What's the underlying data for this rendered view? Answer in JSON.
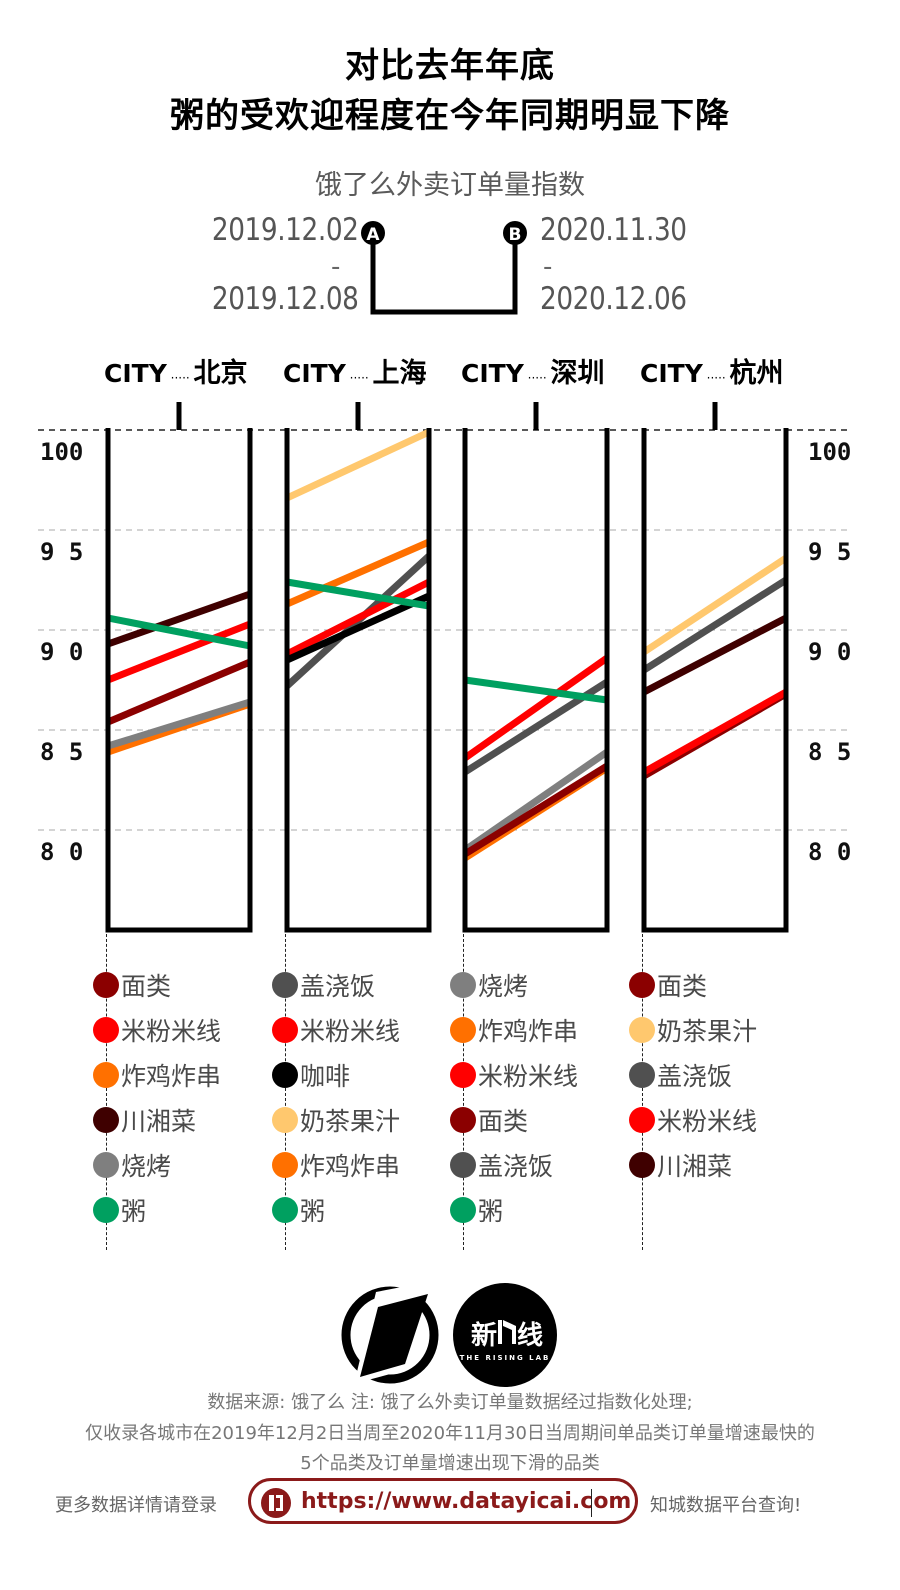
{
  "header": {
    "title_line1": "对比去年年底",
    "title_line2": "粥的受欢迎程度在今年同期明显下降",
    "subtitle": "饿了么外卖订单量指数"
  },
  "periods": {
    "a": {
      "marker": "A",
      "start": "2019.12.02",
      "sep": "-",
      "end": "2019.12.08"
    },
    "b": {
      "marker": "B",
      "start": "2020.11.30",
      "sep": "-",
      "end": "2020.12.06"
    }
  },
  "chart_data": {
    "type": "line",
    "title": "饿了么外卖订单量指数",
    "description": "Slope chart per city: left end = period A (2019.12.02-2019.12.08), right end = period B (2020.11.30-2020.12.06)",
    "x": [
      "A",
      "B"
    ],
    "ylim": [
      75,
      100
    ],
    "yticks": [
      100,
      95,
      90,
      85,
      80
    ],
    "ytick_labels": [
      "100",
      "9 5",
      "9 0",
      "8 5",
      "8 0"
    ],
    "grid": true,
    "panels": [
      {
        "city_prefix": "CITY",
        "city": "北京",
        "series": [
          {
            "name": "面类",
            "color": "#8b0000",
            "values": [
              85.4,
              88.4
            ]
          },
          {
            "name": "米粉米线",
            "color": "#ff0000",
            "values": [
              87.5,
              90.3
            ]
          },
          {
            "name": "炸鸡炸串",
            "color": "#ff7000",
            "values": [
              83.9,
              86.3
            ]
          },
          {
            "name": "川湘菜",
            "color": "#3f0000",
            "values": [
              89.3,
              91.8
            ]
          },
          {
            "name": "烧烤",
            "color": "#7f7f7f",
            "values": [
              84.2,
              86.4
            ]
          },
          {
            "name": "粥",
            "color": "#00a060",
            "values": [
              90.6,
              89.2
            ]
          }
        ]
      },
      {
        "city_prefix": "CITY",
        "city": "上海",
        "series": [
          {
            "name": "盖浇饭",
            "color": "#505050",
            "values": [
              87.2,
              93.7
            ]
          },
          {
            "name": "米粉米线",
            "color": "#ff0000",
            "values": [
              88.8,
              92.4
            ]
          },
          {
            "name": "咖啡",
            "color": "#000000",
            "values": [
              88.5,
              91.7
            ]
          },
          {
            "name": "奶茶果汁",
            "color": "#ffc86e",
            "values": [
              96.6,
              99.9
            ]
          },
          {
            "name": "炸鸡炸串",
            "color": "#ff7000",
            "values": [
              91.3,
              94.4
            ]
          },
          {
            "name": "粥",
            "color": "#00a060",
            "values": [
              92.4,
              91.2
            ]
          }
        ]
      },
      {
        "city_prefix": "CITY",
        "city": "深圳",
        "series": [
          {
            "name": "烧烤",
            "color": "#7f7f7f",
            "values": [
              79.0,
              83.9
            ]
          },
          {
            "name": "炸鸡炸串",
            "color": "#ff7000",
            "values": [
              78.6,
              83.1
            ]
          },
          {
            "name": "米粉米线",
            "color": "#ff0000",
            "values": [
              83.6,
              88.6
            ]
          },
          {
            "name": "面类",
            "color": "#8b0000",
            "values": [
              78.8,
              83.2
            ]
          },
          {
            "name": "盖浇饭",
            "color": "#505050",
            "values": [
              82.9,
              87.4
            ]
          },
          {
            "name": "粥",
            "color": "#00a060",
            "values": [
              87.5,
              86.5
            ]
          }
        ]
      },
      {
        "city_prefix": "CITY",
        "city": "杭州",
        "series": [
          {
            "name": "面类",
            "color": "#8b0000",
            "values": [
              82.7,
              86.8
            ]
          },
          {
            "name": "奶茶果汁",
            "color": "#ffc86e",
            "values": [
              88.9,
              93.6
            ]
          },
          {
            "name": "盖浇饭",
            "color": "#505050",
            "values": [
              88.0,
              92.5
            ]
          },
          {
            "name": "米粉米线",
            "color": "#ff0000",
            "values": [
              82.9,
              86.9
            ]
          },
          {
            "name": "川湘菜",
            "color": "#3f0000",
            "values": [
              86.9,
              90.6
            ]
          }
        ]
      }
    ]
  },
  "logos": {
    "left": "parallelogram-circle-logo",
    "right_text": "新",
    "right_text2": "线",
    "right_sub": "THE RISING LAB"
  },
  "footer": {
    "line1": "数据来源: 饿了么  注: 饿了么外卖订单量数据经过指数化处理;",
    "line2": "仅收录各城市在2019年12月2日当周至2020年11月30日当周期间单品类订单量增速最快的",
    "line3": "5个品类及订单量增速出现下滑的品类",
    "more_left": "更多数据详情请登录",
    "url": "https://www.datayicai.com",
    "more_right": "知城数据平台查询!",
    "accent_color": "#8b1a1a"
  }
}
